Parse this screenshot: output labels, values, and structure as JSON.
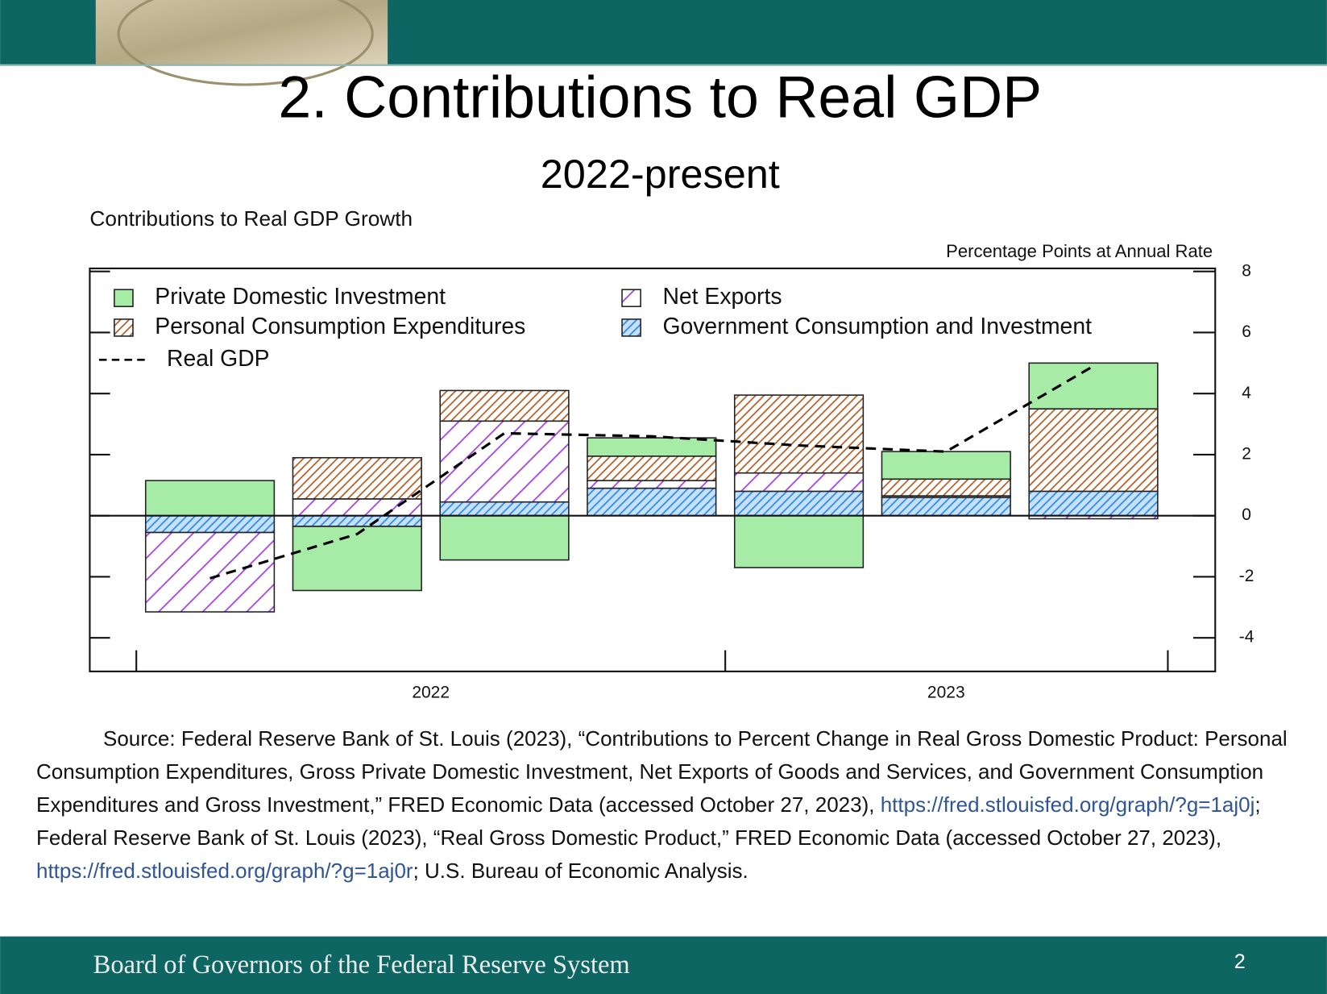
{
  "title": "2. Contributions to Real GDP",
  "subtitle": "2022-present",
  "chart_data": {
    "type": "bar",
    "stacked": true,
    "title": "Contributions to Real GDP Growth",
    "y_axis_label": "Percentage Points at Annual Rate",
    "categories": [
      null,
      null,
      null,
      null,
      null,
      null,
      null
    ],
    "x_labels": [
      "2022",
      "2023"
    ],
    "series": [
      {
        "name": "Private Domestic Investment",
        "color": "#a6eba6",
        "hatch": "none",
        "values": [
          1.15,
          -2.1,
          -1.45,
          0.6,
          -1.7,
          0.9,
          1.5
        ]
      },
      {
        "name": "Personal Consumption Expenditures",
        "color": "#b35a1f",
        "hatch": "dense",
        "values": [
          0,
          1.35,
          1.0,
          0.8,
          2.55,
          0.55,
          2.7
        ]
      },
      {
        "name": "Net Exports",
        "color": "#a23ce8",
        "hatch": "sparse",
        "values": [
          -2.6,
          0.55,
          2.65,
          0.25,
          0.6,
          0.05,
          -0.1
        ]
      },
      {
        "name": "Government Consumption and Investment",
        "color": "#2d86e0",
        "hatch": "dense",
        "hatch_fill": "#c4e2ff",
        "values": [
          -0.55,
          -0.35,
          0.45,
          0.9,
          0.8,
          0.6,
          0.8
        ]
      }
    ],
    "line": {
      "name": "Real GDP",
      "color": "#000000",
      "values": [
        -2.05,
        -0.6,
        2.7,
        2.6,
        2.3,
        2.1,
        4.9
      ]
    },
    "ylim": [
      -5.1,
      8.1
    ],
    "yticks": [
      -4,
      -2,
      0,
      2,
      4,
      6,
      8
    ],
    "legend": "upper left"
  },
  "source": {
    "parts": [
      {
        "text": "Source: Federal Reserve Bank of St. Louis (2023), “Contributions to Percent Change in Real Gross Domestic Product: Personal Consumption Expenditures, Gross Private Domestic Investment, Net Exports of Goods and Services, and Government Consumption Expenditures and Gross Investment,” FRED Economic Data (accessed October 27, 2023), "
      },
      {
        "text": "https://fred.stlouisfed.org/graph/?g=1aj0j",
        "link": true
      },
      {
        "text": "; Federal Reserve Bank of St. Louis (2023), “Real Gross Domestic Product,” FRED Economic Data (accessed October 27, 2023), "
      },
      {
        "text": "https://fred.stlouisfed.org/graph/?g=1aj0r",
        "link": true
      },
      {
        "text": "; U.S. Bureau of Economic Analysis."
      }
    ]
  },
  "footer": {
    "organization": "Board of Governors of the Federal Reserve System",
    "page_number": "2"
  }
}
